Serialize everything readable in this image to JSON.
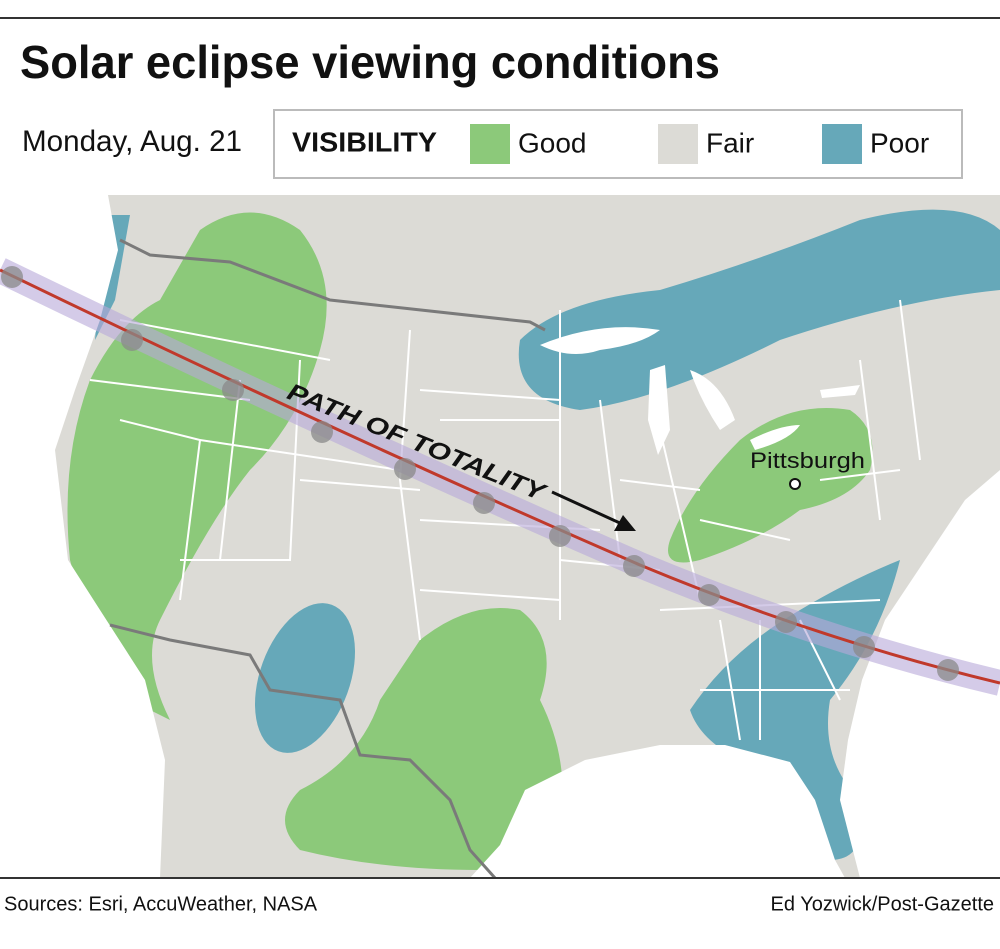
{
  "header": {
    "title": "Solar eclipse viewing conditions",
    "date": "Monday, Aug. 21"
  },
  "legend": {
    "title": "VISIBILITY",
    "items": [
      {
        "label": "Good",
        "color": "#8cc97a"
      },
      {
        "label": "Fair",
        "color": "#dcdbd6"
      },
      {
        "label": "Poor",
        "color": "#66a8b9"
      }
    ]
  },
  "map": {
    "path_label": "PATH OF TOTALITY",
    "city": "Pittsburgh"
  },
  "footer": {
    "sources": "Sources: Esri, AccuWeather, NASA",
    "credit": "Ed Yozwick/Post-Gazette"
  }
}
